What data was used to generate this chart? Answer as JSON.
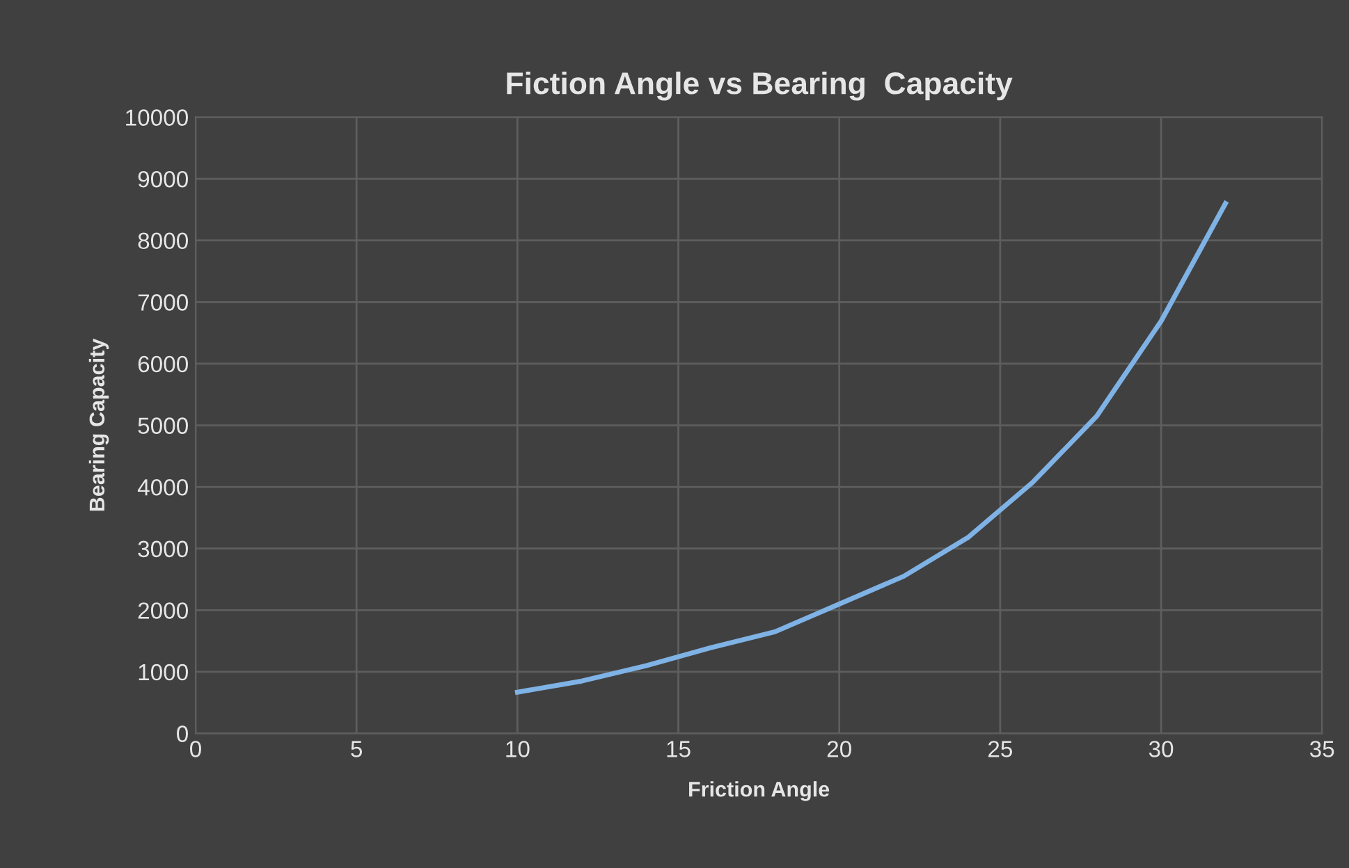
{
  "chart_data": {
    "type": "line",
    "title": "Fiction Angle vs Bearing  Capacity",
    "xlabel": "Friction Angle",
    "ylabel": "Bearing Capacity",
    "x": [
      10,
      12,
      14,
      16,
      18,
      20,
      22,
      24,
      26,
      28,
      30,
      32
    ],
    "series": [
      {
        "color": "#7fb2e5",
        "values": [
          670,
          850,
          1100,
          1390,
          1650,
          2100,
          2550,
          3180,
          4070,
          5150,
          6690,
          8600
        ]
      }
    ],
    "xlim": [
      0,
      35
    ],
    "xticks": [
      0,
      5,
      10,
      15,
      20,
      25,
      30,
      35
    ],
    "ylim": [
      0,
      10000
    ],
    "yticks": [
      0,
      1000,
      2000,
      3000,
      4000,
      5000,
      6000,
      7000,
      8000,
      9000,
      10000
    ],
    "grid": true,
    "marker": "none",
    "line_style": "solid"
  }
}
